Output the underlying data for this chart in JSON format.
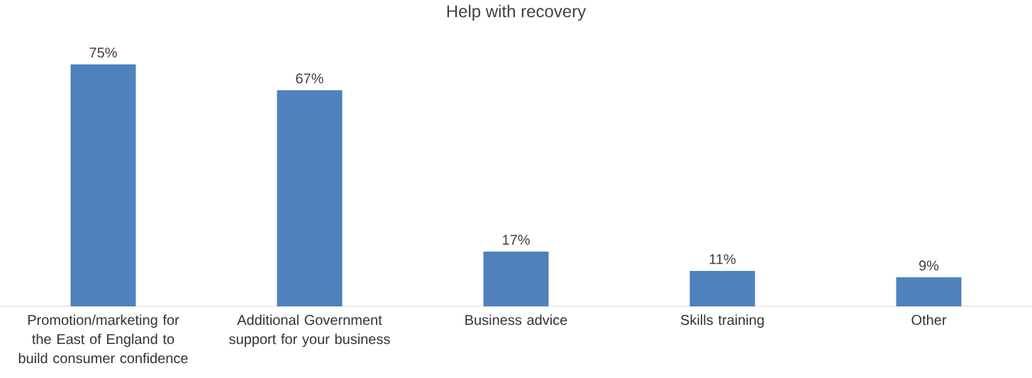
{
  "chart_data": {
    "type": "bar",
    "title": "Help with recovery",
    "categories": [
      "Promotion/marketing for the East of England to build consumer confidence",
      "Additional Government support for your business",
      "Business advice",
      "Skills training",
      "Other"
    ],
    "values": [
      75,
      67,
      17,
      11,
      9
    ],
    "value_labels": [
      "75%",
      "67%",
      "17%",
      "11%",
      "9%"
    ],
    "color": "#4f81bd"
  }
}
